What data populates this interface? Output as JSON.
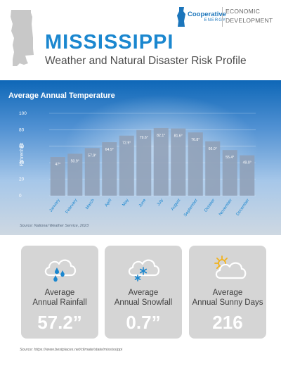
{
  "header": {
    "logo_name": "Cooperative",
    "logo_sub": "ENERGY",
    "org_line1": "ECONOMIC",
    "org_line2": "DEVELOPMENT",
    "title": "MISSISSIPPI",
    "subtitle": "Weather and Natural Disaster Risk Profile"
  },
  "chart_data": {
    "type": "bar",
    "title": "Average Annual Temperature",
    "ylabel": "Fahrenheit",
    "ylim": [
      0,
      100
    ],
    "yticks": [
      0,
      20,
      40,
      60,
      80,
      100
    ],
    "grid": true,
    "categories": [
      "January",
      "February",
      "March",
      "April",
      "May",
      "June",
      "July",
      "August",
      "September",
      "October",
      "November",
      "December"
    ],
    "values": [
      47.0,
      50.9,
      57.9,
      64.9,
      72.9,
      79.6,
      82.1,
      81.6,
      76.8,
      66.0,
      55.4,
      49.0
    ],
    "value_labels": [
      "47°",
      "50.9°",
      "57.9°",
      "64.9°",
      "72.9°",
      "79.6°",
      "82.1°",
      "81.6°",
      "76.8°",
      "66.0°",
      "55.4°",
      "49.0°"
    ],
    "source": "Source: National Weather Service, 2023",
    "bar_color": "#8f9fb5",
    "accent_color": "#1b87cf"
  },
  "cards": [
    {
      "icon": "rain-cloud-icon",
      "label_line1": "Average",
      "label_line2": "Annual Rainfall",
      "value": "57.2”"
    },
    {
      "icon": "snow-cloud-icon",
      "label_line1": "Average",
      "label_line2": "Annual Snowfall",
      "value": "0.7”"
    },
    {
      "icon": "sun-cloud-icon",
      "label_line1": "Average",
      "label_line2": "Annual Sunny Days",
      "value": "216"
    }
  ],
  "footer": {
    "source": "Source: https://www.bestplaces.net/climate/state/mississippi"
  }
}
